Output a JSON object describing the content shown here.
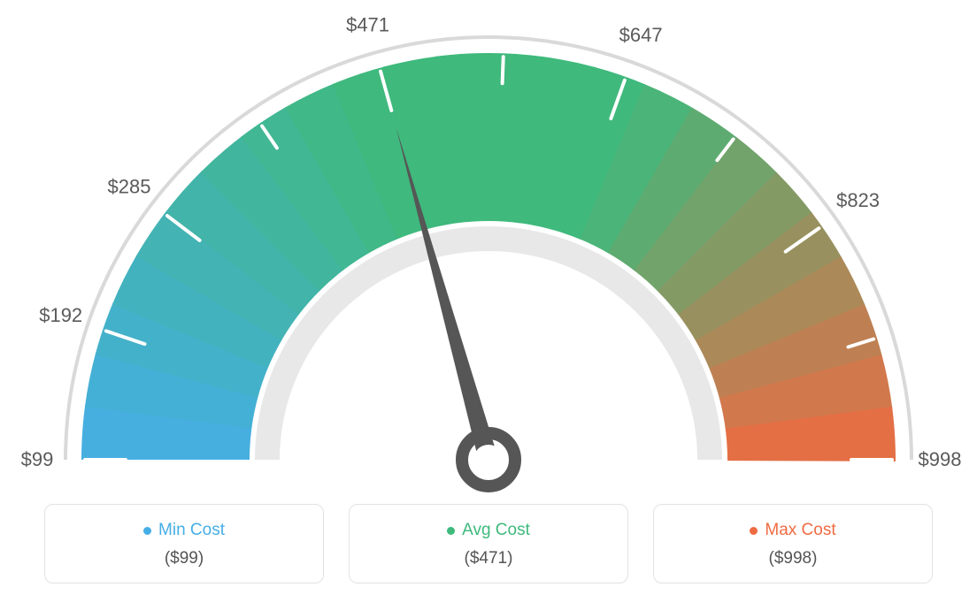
{
  "gauge": {
    "type": "gauge",
    "min_value": 99,
    "max_value": 998,
    "current_value": 471,
    "tick_values": [
      99,
      192,
      285,
      378,
      471,
      559,
      647,
      735,
      823,
      911,
      998
    ],
    "tick_labels": [
      "$99",
      "$192",
      "$285",
      "",
      "$471",
      "",
      "$647",
      "",
      "$823",
      "",
      "$998"
    ],
    "start_angle_deg": 180,
    "end_angle_deg": 360,
    "colors": {
      "min": "#46aee6",
      "avg": "#3fb97c",
      "max": "#ee6b42",
      "outer_ring": "#d9d9d9",
      "inner_ring": "#e8e8e8",
      "tick": "#ffffff",
      "tick_label": "#5a5a5a",
      "needle": "#565656",
      "background": "#ffffff"
    },
    "arc": {
      "outer_radius": 460,
      "inner_radius": 270,
      "ring_outer_radius": 480,
      "ring_outer_thickness": 4,
      "ring_inner_radius": 264,
      "ring_inner_thickness": 28
    },
    "tick_label_fontsize": 22
  },
  "legend": {
    "items": [
      {
        "label": "Min Cost",
        "value": "($99)",
        "color": "#46aee6"
      },
      {
        "label": "Avg Cost",
        "value": "($471)",
        "color": "#3fb97c"
      },
      {
        "label": "Max Cost",
        "value": "($998)",
        "color": "#ee6b42"
      }
    ],
    "label_fontsize": 19,
    "value_fontsize": 19,
    "value_color": "#555555",
    "card_border_color": "#e2e2e2",
    "card_border_radius": 10
  }
}
